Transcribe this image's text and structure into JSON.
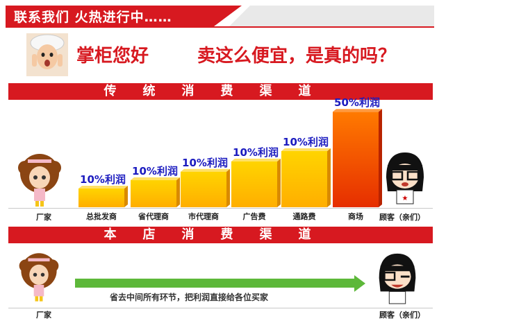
{
  "header": {
    "title": "联系我们    火热进行中……"
  },
  "question": {
    "left": "掌柜您好",
    "right": "卖这么便宜，是真的吗？"
  },
  "sections": {
    "traditional": "传统消费渠道",
    "ours": "本店消费渠道"
  },
  "chart_data": {
    "type": "bar",
    "categories": [
      "总批发商",
      "省代理商",
      "市代理商",
      "广告费",
      "通路费",
      "商场"
    ],
    "values": [
      10,
      10,
      10,
      10,
      10,
      50
    ],
    "value_labels": [
      "10%利润",
      "10%利润",
      "10%利润",
      "10%利润",
      "10%利润",
      "50%利润"
    ],
    "bar_heights_relative": [
      1,
      1.45,
      1.9,
      2.45,
      3.0,
      5.1
    ],
    "ends": {
      "left": "厂家",
      "right": "顾客（亲们）"
    },
    "colors": {
      "bar_top": "#ffd400",
      "bar_bottom": "#ff5a00",
      "label": "#1b1bbf"
    }
  },
  "bottom": {
    "arrow_text": "省去中间所有环节，把利润直接给各位买家",
    "left_label": "厂家",
    "right_label": "顾客（亲们）",
    "arrow_color": "#5db83a"
  }
}
